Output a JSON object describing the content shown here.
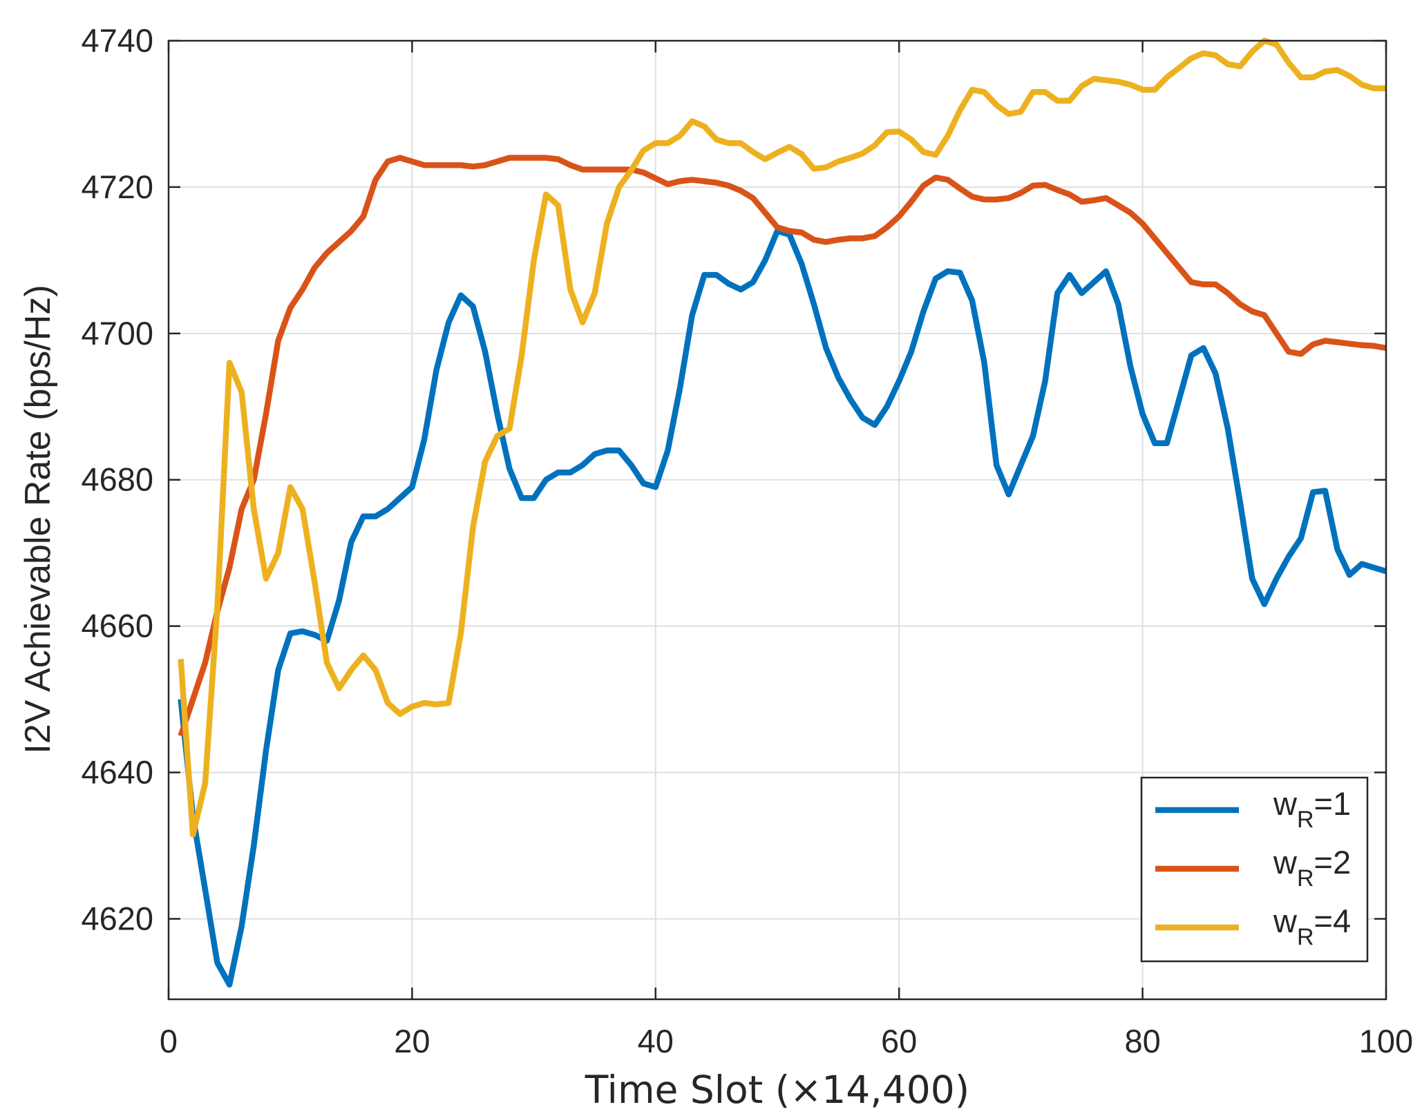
{
  "chart_data": {
    "type": "line",
    "title": "",
    "xlabel": "Time Slot (×14,400)",
    "ylabel": "I2V Achievable Rate (bps/Hz)",
    "xlim": [
      0,
      100
    ],
    "ylim": [
      4609,
      4740
    ],
    "xticks": [
      0,
      20,
      40,
      60,
      80,
      100
    ],
    "yticks": [
      4620,
      4640,
      4660,
      4680,
      4700,
      4720,
      4740
    ],
    "xtick_labels": [
      "0",
      "20",
      "40",
      "60",
      "80",
      "100"
    ],
    "ytick_labels": [
      "4620",
      "4640",
      "4660",
      "4680",
      "4700",
      "4720",
      "4740"
    ],
    "grid": true,
    "legend_position": "bottom-right",
    "x": [
      1,
      2,
      3,
      4,
      5,
      6,
      7,
      8,
      9,
      10,
      11,
      12,
      13,
      14,
      15,
      16,
      17,
      18,
      19,
      20,
      21,
      22,
      23,
      24,
      25,
      26,
      27,
      28,
      29,
      30,
      31,
      32,
      33,
      34,
      35,
      36,
      37,
      38,
      39,
      40,
      41,
      42,
      43,
      44,
      45,
      46,
      47,
      48,
      49,
      50,
      51,
      52,
      53,
      54,
      55,
      56,
      57,
      58,
      59,
      60,
      61,
      62,
      63,
      64,
      65,
      66,
      67,
      68,
      69,
      70,
      71,
      72,
      73,
      74,
      75,
      76,
      77,
      78,
      79,
      80,
      81,
      82,
      83,
      84,
      85,
      86,
      87,
      88,
      89,
      90,
      91,
      92,
      93,
      94,
      95,
      96,
      97,
      98,
      99,
      100
    ],
    "series": [
      {
        "name": "w_R=1",
        "legend_main": "w",
        "legend_sub": "R",
        "legend_tail": "=1",
        "color": "#0072bd",
        "values": [
          4650,
          4634,
          4624,
          4614,
          4611,
          4619,
          4630,
          4643,
          4654,
          4659,
          4659.3,
          4658.8,
          4658,
          4663.5,
          4671.5,
          4675,
          4675,
          4676,
          4677.5,
          4679,
          4685.5,
          4695,
          4701.5,
          4705.2,
          4703.7,
          4697.5,
          4689,
          4681.5,
          4677.5,
          4677.5,
          4680,
          4681,
          4681,
          4682,
          4683.5,
          4684,
          4684,
          4682,
          4679.5,
          4679,
          4684,
          4692.5,
          4702.5,
          4708,
          4708,
          4706.8,
          4706,
          4707,
          4710,
          4714,
          4713.5,
          4709.5,
          4704,
          4698,
          4694,
          4691,
          4688.5,
          4687.5,
          4690,
          4693.5,
          4697.5,
          4703,
          4707.5,
          4708.5,
          4708.3,
          4704.5,
          4696,
          4682,
          4678,
          4682,
          4686,
          4693.5,
          4705.5,
          4708,
          4705.5,
          4707,
          4708.5,
          4704,
          4695.5,
          4689,
          4685,
          4685,
          4691,
          4697,
          4698,
          4694.5,
          4687,
          4677,
          4666.5,
          4663,
          4666.5,
          4669.5,
          4672,
          4678.3,
          4678.5,
          4670.5,
          4667,
          4668.5,
          4668,
          4667.5
        ]
      },
      {
        "name": "w_R=2",
        "legend_main": "w",
        "legend_sub": "R",
        "legend_tail": "=2",
        "color": "#d95319",
        "values": [
          4645,
          4650,
          4655,
          4662,
          4668,
          4676,
          4680,
          4689,
          4699,
          4703.5,
          4706,
          4709,
          4711,
          4712.5,
          4714,
          4716,
          4721,
          4723.5,
          4724,
          4723.5,
          4723,
          4723,
          4723,
          4723,
          4722.8,
          4723,
          4723.5,
          4724,
          4724,
          4724,
          4724,
          4723.8,
          4723,
          4722.4,
          4722.4,
          4722.4,
          4722.4,
          4722.4,
          4722,
          4721.2,
          4720.4,
          4720.8,
          4721,
          4720.8,
          4720.6,
          4720.2,
          4719.5,
          4718.5,
          4716.5,
          4714.5,
          4714,
          4713.8,
          4712.8,
          4712.5,
          4712.8,
          4713,
          4713,
          4713.3,
          4714.5,
          4716,
          4718,
          4720.2,
          4721.3,
          4721,
          4719.8,
          4718.7,
          4718.3,
          4718.3,
          4718.5,
          4719.2,
          4720.2,
          4720.3,
          4719.6,
          4719,
          4718,
          4718.2,
          4718.5,
          4717.5,
          4716.5,
          4715,
          4713,
          4711,
          4709,
          4707,
          4706.7,
          4706.7,
          4705.5,
          4704,
          4703,
          4702.5,
          4700,
          4697.5,
          4697.2,
          4698.5,
          4699,
          4698.8,
          4698.6,
          4698.4,
          4698.3,
          4698
        ]
      },
      {
        "name": "w_R=4",
        "legend_main": "w",
        "legend_sub": "R",
        "legend_tail": "=4",
        "color": "#edb120",
        "values": [
          4655.5,
          4631.5,
          4638.5,
          4662.5,
          4696,
          4692,
          4676,
          4666.5,
          4670,
          4679,
          4676,
          4666,
          4655,
          4651.5,
          4654,
          4656,
          4654,
          4649.5,
          4648,
          4649,
          4649.5,
          4649.3,
          4649.5,
          4659,
          4673.5,
          4682.5,
          4686,
          4687,
          4697,
          4710,
          4719,
          4717.5,
          4706,
          4701.5,
          4705.5,
          4715,
          4720,
          4722.3,
          4725,
          4726,
          4726,
          4727,
          4729,
          4728.3,
          4726.5,
          4726,
          4726,
          4724.8,
          4723.8,
          4724.7,
          4725.5,
          4724.5,
          4722.5,
          4722.7,
          4723.5,
          4724,
          4724.6,
          4725.7,
          4727.5,
          4727.6,
          4726.5,
          4724.8,
          4724.4,
          4727,
          4730.5,
          4733.3,
          4733,
          4731.2,
          4730,
          4730.3,
          4733,
          4733,
          4731.8,
          4731.8,
          4733.8,
          4734.8,
          4734.6,
          4734.4,
          4734,
          4733.3,
          4733.3,
          4735,
          4736.3,
          4737.6,
          4738.3,
          4738,
          4736.8,
          4736.5,
          4738.5,
          4740,
          4739.5,
          4737,
          4735,
          4735,
          4735.8,
          4736,
          4735.2,
          4734,
          4733.5,
          4733.5
        ]
      }
    ]
  }
}
